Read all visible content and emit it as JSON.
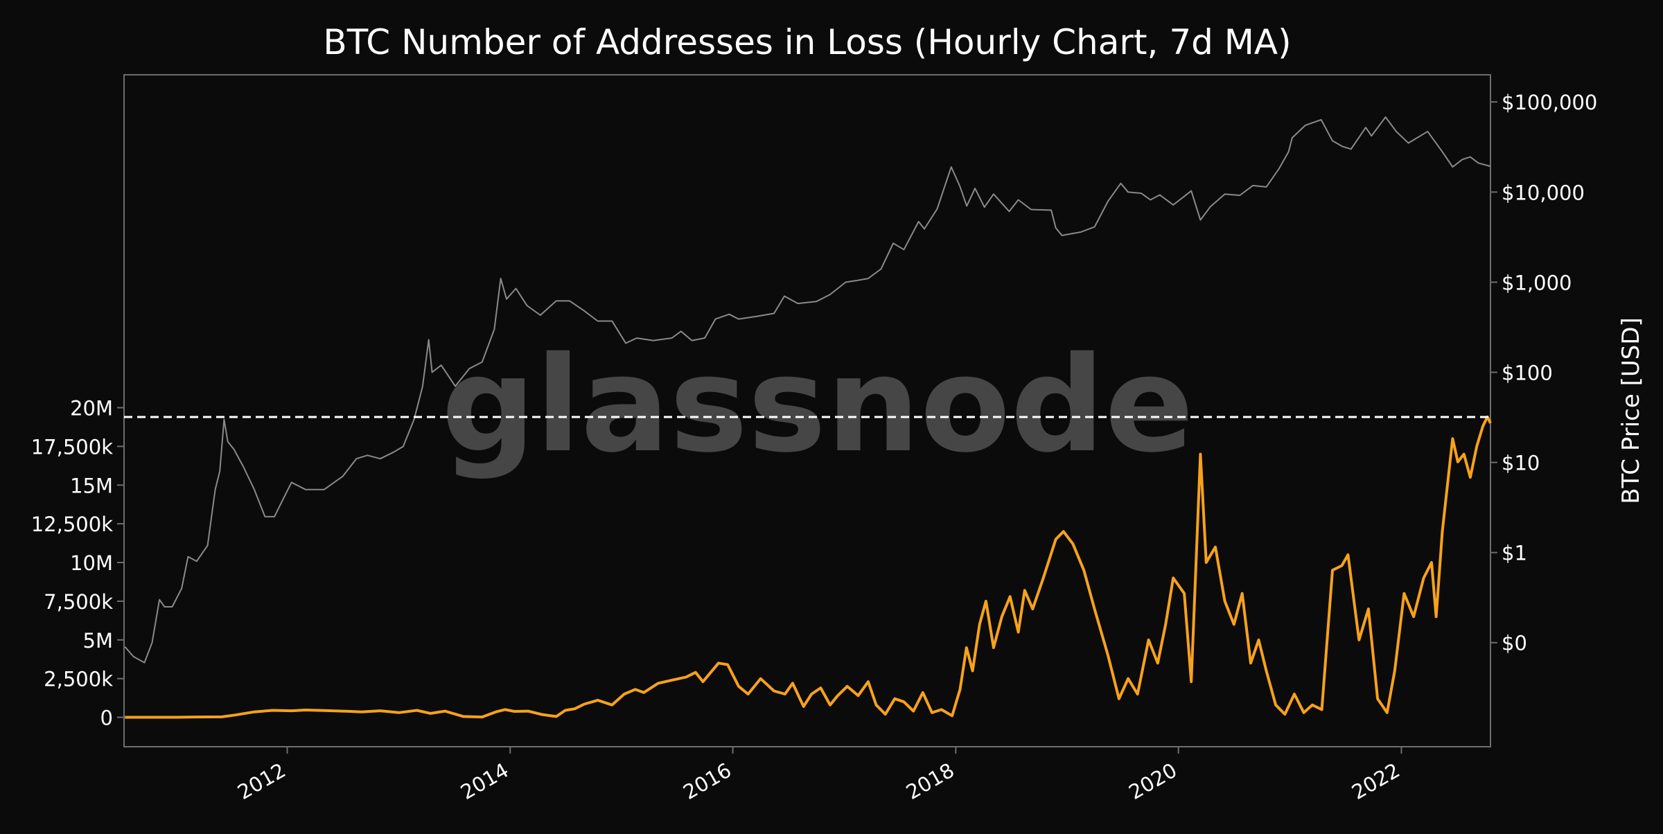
{
  "colors": {
    "background": "#0b0b0b",
    "plot_background": "#0b0b0b",
    "frame": "#6e6e6e",
    "text": "#ffffff",
    "price_line": "#8a8a8a",
    "loss_line": "#f7a21b",
    "ath_line": "#ffffff",
    "watermark": "#5a5a5a"
  },
  "watermark": {
    "text": "glassnode"
  },
  "chart_data": {
    "type": "line",
    "title": "BTC Number of Addresses in Loss (Hourly Chart, 7d MA)",
    "xlabel": "",
    "ylabel": "",
    "y2label": "BTC Price [USD]",
    "x_range": [
      "2010-07-15",
      "2022-10-20"
    ],
    "ylim": [
      -1900000,
      41500000
    ],
    "y_ticks": [
      {
        "value": 0,
        "label": "0"
      },
      {
        "value": 2500000,
        "label": "2,500k"
      },
      {
        "value": 5000000,
        "label": "5M"
      },
      {
        "value": 7500000,
        "label": "7,500k"
      },
      {
        "value": 10000000,
        "label": "10M"
      },
      {
        "value": 12500000,
        "label": "12,500k"
      },
      {
        "value": 15000000,
        "label": "15M"
      },
      {
        "value": 17500000,
        "label": "17,500k"
      },
      {
        "value": 20000000,
        "label": "20M"
      }
    ],
    "y2_scale": "log",
    "y2lim": [
      0.007,
      200000
    ],
    "y2_ticks": [
      {
        "value": 0.1,
        "label": "$0"
      },
      {
        "value": 1,
        "label": "$1"
      },
      {
        "value": 10,
        "label": "$10"
      },
      {
        "value": 100,
        "label": "$100"
      },
      {
        "value": 1000,
        "label": "$1,000"
      },
      {
        "value": 10000,
        "label": "$10,000"
      },
      {
        "value": 100000,
        "label": "$100,000"
      }
    ],
    "x_ticks": [
      {
        "value": "2012-01-01",
        "label": "2012"
      },
      {
        "value": "2014-01-01",
        "label": "2014"
      },
      {
        "value": "2016-01-01",
        "label": "2016"
      },
      {
        "value": "2018-01-01",
        "label": "2018"
      },
      {
        "value": "2020-01-01",
        "label": "2020"
      },
      {
        "value": "2022-01-01",
        "label": "2022"
      }
    ],
    "reference_line": {
      "value": 19400000,
      "style": "dashed"
    },
    "grid": false,
    "legend": "none",
    "series": [
      {
        "axis": "right",
        "points": [
          [
            "2010-07-18",
            0.09
          ],
          [
            "2010-08-15",
            0.07
          ],
          [
            "2010-09-20",
            0.06
          ],
          [
            "2010-10-15",
            0.1
          ],
          [
            "2010-11-08",
            0.3
          ],
          [
            "2010-11-25",
            0.25
          ],
          [
            "2010-12-20",
            0.25
          ],
          [
            "2011-01-20",
            0.4
          ],
          [
            "2011-02-10",
            0.9
          ],
          [
            "2011-03-10",
            0.8
          ],
          [
            "2011-04-15",
            1.2
          ],
          [
            "2011-05-10",
            5
          ],
          [
            "2011-05-25",
            8
          ],
          [
            "2011-06-08",
            30
          ],
          [
            "2011-06-20",
            17
          ],
          [
            "2011-07-10",
            14
          ],
          [
            "2011-08-10",
            9
          ],
          [
            "2011-09-15",
            5
          ],
          [
            "2011-10-20",
            2.5
          ],
          [
            "2011-11-20",
            2.5
          ],
          [
            "2011-12-20",
            4
          ],
          [
            "2012-01-15",
            6
          ],
          [
            "2012-03-01",
            5
          ],
          [
            "2012-05-01",
            5
          ],
          [
            "2012-07-01",
            7
          ],
          [
            "2012-08-15",
            11
          ],
          [
            "2012-09-20",
            12
          ],
          [
            "2012-11-01",
            11
          ],
          [
            "2012-12-15",
            13
          ],
          [
            "2013-01-15",
            15
          ],
          [
            "2013-02-20",
            30
          ],
          [
            "2013-03-20",
            70
          ],
          [
            "2013-04-09",
            230
          ],
          [
            "2013-04-20",
            100
          ],
          [
            "2013-05-20",
            120
          ],
          [
            "2013-07-05",
            70
          ],
          [
            "2013-08-20",
            110
          ],
          [
            "2013-10-01",
            130
          ],
          [
            "2013-11-10",
            300
          ],
          [
            "2013-12-01",
            1100
          ],
          [
            "2013-12-20",
            650
          ],
          [
            "2014-01-20",
            850
          ],
          [
            "2014-02-25",
            550
          ],
          [
            "2014-04-10",
            430
          ],
          [
            "2014-06-01",
            620
          ],
          [
            "2014-07-15",
            620
          ],
          [
            "2014-09-01",
            480
          ],
          [
            "2014-10-15",
            370
          ],
          [
            "2014-12-01",
            370
          ],
          [
            "2015-01-15",
            210
          ],
          [
            "2015-02-20",
            240
          ],
          [
            "2015-04-15",
            225
          ],
          [
            "2015-06-15",
            240
          ],
          [
            "2015-07-15",
            285
          ],
          [
            "2015-08-20",
            225
          ],
          [
            "2015-10-01",
            240
          ],
          [
            "2015-11-05",
            390
          ],
          [
            "2015-12-20",
            440
          ],
          [
            "2016-01-20",
            390
          ],
          [
            "2016-03-15",
            415
          ],
          [
            "2016-05-15",
            450
          ],
          [
            "2016-06-18",
            700
          ],
          [
            "2016-08-01",
            580
          ],
          [
            "2016-10-01",
            610
          ],
          [
            "2016-11-15",
            730
          ],
          [
            "2017-01-05",
            1000
          ],
          [
            "2017-02-15",
            1050
          ],
          [
            "2017-03-20",
            1100
          ],
          [
            "2017-05-01",
            1400
          ],
          [
            "2017-06-10",
            2700
          ],
          [
            "2017-07-15",
            2300
          ],
          [
            "2017-09-01",
            4700
          ],
          [
            "2017-09-20",
            3900
          ],
          [
            "2017-11-01",
            6500
          ],
          [
            "2017-12-17",
            19000
          ],
          [
            "2018-01-15",
            11500
          ],
          [
            "2018-02-06",
            7000
          ],
          [
            "2018-03-05",
            11000
          ],
          [
            "2018-04-05",
            6800
          ],
          [
            "2018-05-05",
            9500
          ],
          [
            "2018-06-25",
            6100
          ],
          [
            "2018-07-25",
            8200
          ],
          [
            "2018-09-05",
            6400
          ],
          [
            "2018-11-10",
            6300
          ],
          [
            "2018-11-25",
            4000
          ],
          [
            "2018-12-15",
            3300
          ],
          [
            "2019-02-15",
            3600
          ],
          [
            "2019-04-01",
            4100
          ],
          [
            "2019-05-15",
            7900
          ],
          [
            "2019-06-26",
            12500
          ],
          [
            "2019-07-20",
            10000
          ],
          [
            "2019-09-01",
            9700
          ],
          [
            "2019-10-01",
            8200
          ],
          [
            "2019-11-01",
            9300
          ],
          [
            "2019-12-15",
            7200
          ],
          [
            "2020-02-12",
            10300
          ],
          [
            "2020-03-13",
            4900
          ],
          [
            "2020-04-15",
            6900
          ],
          [
            "2020-06-01",
            9500
          ],
          [
            "2020-07-20",
            9200
          ],
          [
            "2020-09-01",
            11800
          ],
          [
            "2020-10-15",
            11400
          ],
          [
            "2020-11-25",
            18000
          ],
          [
            "2020-12-27",
            28000
          ],
          [
            "2021-01-08",
            40000
          ],
          [
            "2021-02-20",
            55000
          ],
          [
            "2021-04-13",
            63500
          ],
          [
            "2021-05-20",
            37000
          ],
          [
            "2021-06-22",
            32000
          ],
          [
            "2021-07-20",
            30000
          ],
          [
            "2021-09-06",
            52000
          ],
          [
            "2021-09-25",
            42000
          ],
          [
            "2021-11-10",
            68000
          ],
          [
            "2021-12-15",
            47000
          ],
          [
            "2022-01-24",
            35000
          ],
          [
            "2022-03-28",
            47000
          ],
          [
            "2022-05-12",
            29000
          ],
          [
            "2022-06-18",
            19000
          ],
          [
            "2022-07-20",
            23000
          ],
          [
            "2022-08-15",
            24500
          ],
          [
            "2022-09-10",
            21000
          ],
          [
            "2022-10-20",
            19300
          ]
        ]
      },
      {
        "axis": "left",
        "points": [
          [
            "2010-07-18",
            0
          ],
          [
            "2011-01-01",
            0
          ],
          [
            "2011-03-01",
            20000
          ],
          [
            "2011-06-01",
            30000
          ],
          [
            "2011-07-15",
            150000
          ],
          [
            "2011-09-15",
            350000
          ],
          [
            "2011-11-15",
            450000
          ],
          [
            "2012-01-15",
            420000
          ],
          [
            "2012-03-01",
            470000
          ],
          [
            "2012-05-01",
            440000
          ],
          [
            "2012-07-01",
            400000
          ],
          [
            "2012-09-01",
            350000
          ],
          [
            "2012-11-01",
            420000
          ],
          [
            "2013-01-01",
            300000
          ],
          [
            "2013-03-01",
            450000
          ],
          [
            "2013-04-15",
            250000
          ],
          [
            "2013-06-01",
            400000
          ],
          [
            "2013-08-01",
            50000
          ],
          [
            "2013-10-01",
            20000
          ],
          [
            "2013-11-15",
            350000
          ],
          [
            "2013-12-15",
            500000
          ],
          [
            "2014-01-15",
            380000
          ],
          [
            "2014-03-01",
            400000
          ],
          [
            "2014-04-15",
            180000
          ],
          [
            "2014-06-01",
            50000
          ],
          [
            "2014-07-01",
            450000
          ],
          [
            "2014-08-01",
            550000
          ],
          [
            "2014-09-01",
            850000
          ],
          [
            "2014-10-15",
            1100000
          ],
          [
            "2014-12-01",
            800000
          ],
          [
            "2015-01-10",
            1500000
          ],
          [
            "2015-02-15",
            1800000
          ],
          [
            "2015-03-15",
            1600000
          ],
          [
            "2015-05-01",
            2200000
          ],
          [
            "2015-06-15",
            2400000
          ],
          [
            "2015-08-01",
            2600000
          ],
          [
            "2015-09-01",
            2900000
          ],
          [
            "2015-09-25",
            2300000
          ],
          [
            "2015-11-15",
            3500000
          ],
          [
            "2015-12-15",
            3400000
          ],
          [
            "2016-01-20",
            2000000
          ],
          [
            "2016-02-20",
            1500000
          ],
          [
            "2016-04-01",
            2500000
          ],
          [
            "2016-05-15",
            1700000
          ],
          [
            "2016-06-20",
            1500000
          ],
          [
            "2016-07-15",
            2200000
          ],
          [
            "2016-08-20",
            700000
          ],
          [
            "2016-09-15",
            1500000
          ],
          [
            "2016-10-15",
            1900000
          ],
          [
            "2016-11-15",
            800000
          ],
          [
            "2016-12-10",
            1400000
          ],
          [
            "2017-01-10",
            2000000
          ],
          [
            "2017-02-15",
            1400000
          ],
          [
            "2017-03-20",
            2300000
          ],
          [
            "2017-04-15",
            800000
          ],
          [
            "2017-05-15",
            200000
          ],
          [
            "2017-06-15",
            1200000
          ],
          [
            "2017-07-15",
            1000000
          ],
          [
            "2017-08-15",
            400000
          ],
          [
            "2017-09-15",
            1600000
          ],
          [
            "2017-10-15",
            300000
          ],
          [
            "2017-11-15",
            500000
          ],
          [
            "2017-12-20",
            100000
          ],
          [
            "2018-01-15",
            1800000
          ],
          [
            "2018-02-05",
            4500000
          ],
          [
            "2018-02-25",
            3000000
          ],
          [
            "2018-03-20",
            6000000
          ],
          [
            "2018-04-10",
            7500000
          ],
          [
            "2018-05-05",
            4500000
          ],
          [
            "2018-06-01",
            6500000
          ],
          [
            "2018-06-28",
            7800000
          ],
          [
            "2018-07-25",
            5500000
          ],
          [
            "2018-08-15",
            8200000
          ],
          [
            "2018-09-10",
            7000000
          ],
          [
            "2018-10-15",
            9000000
          ],
          [
            "2018-11-25",
            11500000
          ],
          [
            "2018-12-20",
            12000000
          ],
          [
            "2019-01-20",
            11200000
          ],
          [
            "2019-02-25",
            9500000
          ],
          [
            "2019-04-01",
            7000000
          ],
          [
            "2019-05-15",
            4000000
          ],
          [
            "2019-06-20",
            1200000
          ],
          [
            "2019-07-20",
            2500000
          ],
          [
            "2019-08-20",
            1500000
          ],
          [
            "2019-09-25",
            5000000
          ],
          [
            "2019-10-25",
            3500000
          ],
          [
            "2019-11-20",
            6000000
          ],
          [
            "2019-12-15",
            9000000
          ],
          [
            "2020-01-20",
            8000000
          ],
          [
            "2020-02-12",
            2300000
          ],
          [
            "2020-03-13",
            17000000
          ],
          [
            "2020-04-01",
            10000000
          ],
          [
            "2020-05-01",
            11000000
          ],
          [
            "2020-06-01",
            7500000
          ],
          [
            "2020-07-01",
            6000000
          ],
          [
            "2020-07-28",
            8000000
          ],
          [
            "2020-08-25",
            3500000
          ],
          [
            "2020-09-20",
            5000000
          ],
          [
            "2020-10-15",
            3000000
          ],
          [
            "2020-11-15",
            800000
          ],
          [
            "2020-12-15",
            200000
          ],
          [
            "2021-01-15",
            1500000
          ],
          [
            "2021-02-15",
            300000
          ],
          [
            "2021-03-15",
            800000
          ],
          [
            "2021-04-15",
            500000
          ],
          [
            "2021-05-20",
            9500000
          ],
          [
            "2021-06-20",
            9800000
          ],
          [
            "2021-07-10",
            10500000
          ],
          [
            "2021-08-15",
            5000000
          ],
          [
            "2021-09-15",
            7000000
          ],
          [
            "2021-10-15",
            1200000
          ],
          [
            "2021-11-15",
            300000
          ],
          [
            "2021-12-10",
            3000000
          ],
          [
            "2022-01-10",
            8000000
          ],
          [
            "2022-02-10",
            6500000
          ],
          [
            "2022-03-15",
            9000000
          ],
          [
            "2022-04-10",
            10000000
          ],
          [
            "2022-04-25",
            6500000
          ],
          [
            "2022-05-15",
            12000000
          ],
          [
            "2022-06-01",
            15000000
          ],
          [
            "2022-06-18",
            18000000
          ],
          [
            "2022-07-05",
            16500000
          ],
          [
            "2022-07-25",
            17000000
          ],
          [
            "2022-08-15",
            15500000
          ],
          [
            "2022-09-05",
            17500000
          ],
          [
            "2022-09-25",
            18800000
          ],
          [
            "2022-10-10",
            19400000
          ],
          [
            "2022-10-20",
            19000000
          ]
        ]
      }
    ]
  }
}
